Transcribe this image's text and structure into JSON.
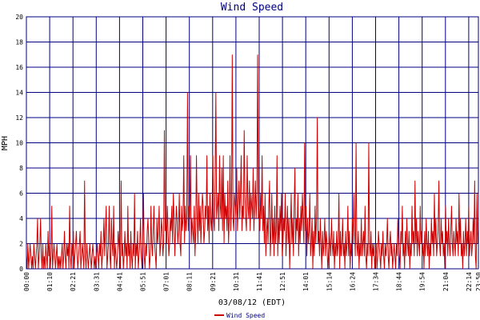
{
  "chart_data": {
    "type": "line",
    "title": "Wind Speed",
    "xlabel": "03/08/12 (EDT)",
    "ylabel": "MPH",
    "ylim": [
      0,
      20
    ],
    "yticks": [
      "0",
      "2",
      "4",
      "6",
      "8",
      "10",
      "12",
      "14",
      "16",
      "18",
      "20"
    ],
    "xticks": [
      "00:00",
      "01:10",
      "02:21",
      "03:31",
      "04:41",
      "05:51",
      "07:01",
      "08:11",
      "09:21",
      "10:31",
      "11:41",
      "12:51",
      "14:01",
      "15:14",
      "16:24",
      "17:34",
      "18:44",
      "19:54",
      "21:04",
      "22:14",
      "23:24",
      "23:50"
    ],
    "grid": true,
    "legend_position": "bottom-center",
    "colors": {
      "series": "#cc0000",
      "grid": "#000080",
      "frame": "#000080"
    },
    "series": [
      {
        "name": "Wind Speed",
        "values": [
          1,
          0,
          2,
          0,
          1,
          2,
          1,
          0,
          1,
          0,
          2,
          1,
          0,
          1,
          2,
          4,
          0,
          1,
          2,
          4,
          1,
          0,
          2,
          0,
          1,
          0,
          2,
          1,
          0,
          3,
          1,
          2,
          0,
          1,
          5,
          0,
          1,
          2,
          1,
          0,
          1,
          2,
          0,
          1,
          0,
          1,
          0,
          1,
          2,
          0,
          1,
          3,
          1,
          0,
          2,
          1,
          2,
          0,
          5,
          1,
          0,
          2,
          1,
          3,
          0,
          1,
          2,
          3,
          1,
          0,
          1,
          2,
          3,
          0,
          1,
          2,
          1,
          0,
          7,
          1,
          0,
          2,
          1,
          0,
          1,
          2,
          1,
          0,
          1,
          2,
          1,
          0,
          1,
          0,
          1,
          2,
          1,
          0,
          2,
          1,
          3,
          0,
          1,
          2,
          4,
          1,
          3,
          5,
          0,
          1,
          2,
          5,
          1,
          0,
          4,
          2,
          1,
          5,
          0,
          2,
          1,
          0,
          1,
          3,
          2,
          1,
          0,
          7,
          1,
          2,
          0,
          1,
          3,
          1,
          2,
          0,
          5,
          1,
          2,
          0,
          3,
          1,
          0,
          2,
          1,
          6,
          0,
          2,
          1,
          3,
          0,
          1,
          2,
          4,
          1,
          0,
          2,
          6,
          1,
          0,
          2,
          1,
          3,
          4,
          2,
          0,
          1,
          5,
          2,
          1,
          3,
          5,
          2,
          1,
          0,
          4,
          2,
          3,
          5,
          1,
          2,
          4,
          3,
          1,
          2,
          11,
          3,
          4,
          2,
          5,
          3,
          1,
          2,
          4,
          3,
          5,
          2,
          6,
          4,
          1,
          3,
          5,
          4,
          2,
          3,
          6,
          2,
          1,
          5,
          3,
          4,
          9,
          2,
          5,
          3,
          4,
          14,
          3,
          5,
          4,
          9,
          2,
          4,
          3,
          2,
          5,
          1,
          3,
          9,
          4,
          2,
          6,
          3,
          5,
          2,
          4,
          6,
          5,
          2,
          3,
          5,
          4,
          9,
          3,
          5,
          2,
          6,
          4,
          3,
          5,
          9,
          4,
          3,
          7,
          14,
          4,
          5,
          6,
          3,
          9,
          5,
          4,
          8,
          3,
          9,
          2,
          6,
          4,
          5,
          3,
          7,
          2,
          4,
          9,
          3,
          5,
          17,
          4,
          3,
          6,
          5,
          4,
          8,
          3,
          5,
          7,
          4,
          6,
          9,
          3,
          5,
          4,
          11,
          6,
          4,
          3,
          9,
          5,
          4,
          7,
          3,
          6,
          5,
          4,
          8,
          3,
          5,
          7,
          4,
          6,
          17,
          4,
          5,
          3,
          6,
          4,
          9,
          3,
          5,
          2,
          6,
          1,
          3,
          4,
          2,
          5,
          7,
          1,
          3,
          6,
          2,
          4,
          1,
          5,
          2,
          3,
          9,
          1,
          4,
          2,
          5,
          3,
          6,
          1,
          2,
          4,
          3,
          6,
          1,
          3,
          5,
          2,
          4,
          0,
          3,
          6,
          2,
          4,
          1,
          5,
          8,
          2,
          4,
          3,
          6,
          1,
          4,
          2,
          5,
          3,
          6,
          4,
          2,
          10,
          3,
          5,
          1,
          4,
          2,
          3,
          6,
          1,
          2,
          4,
          0,
          3,
          1,
          5,
          2,
          4,
          12,
          2,
          3,
          1,
          4,
          2,
          0,
          3,
          1,
          2,
          4,
          1,
          3,
          2,
          0,
          1,
          3,
          2,
          1,
          4,
          2,
          1,
          3,
          0,
          2,
          1,
          3,
          1,
          2,
          6,
          0,
          3,
          1,
          2,
          4,
          1,
          2,
          0,
          3,
          1,
          2,
          5,
          1,
          3,
          0,
          2,
          1,
          4,
          2,
          6,
          3,
          1,
          10,
          2,
          1,
          3,
          0,
          2,
          1,
          4,
          1,
          2,
          3,
          1,
          5,
          1,
          0,
          2,
          1,
          10,
          2,
          1,
          3,
          0,
          2,
          1,
          2,
          0,
          1,
          2,
          0,
          1,
          3,
          2,
          1,
          0,
          2,
          1,
          3,
          1,
          0,
          2,
          1,
          2,
          4,
          1,
          0,
          2,
          3,
          1,
          2,
          0,
          1,
          2,
          1,
          0,
          2,
          1,
          4,
          2,
          1,
          0,
          3,
          2,
          5,
          1,
          2,
          0,
          3,
          1,
          4,
          2,
          1,
          3,
          0,
          2,
          1,
          5,
          2,
          3,
          1,
          7,
          2,
          4,
          1,
          3,
          2,
          1,
          5,
          2,
          3,
          1,
          2,
          0,
          3,
          1,
          4,
          2,
          1,
          3,
          0,
          2,
          1,
          4,
          2,
          3,
          1,
          6,
          2,
          4,
          1,
          2,
          3,
          7,
          2,
          1,
          4,
          2,
          3,
          1,
          2,
          0,
          5,
          2,
          3,
          1,
          4,
          2,
          1,
          3,
          5,
          2,
          1,
          3,
          2,
          1,
          4,
          2,
          3,
          1,
          6,
          2,
          4,
          1,
          2,
          0,
          3,
          1,
          2,
          4,
          1,
          3,
          2,
          5,
          1,
          2,
          3,
          1,
          2,
          4,
          2,
          7,
          1,
          0,
          6,
          2,
          3
        ]
      }
    ]
  }
}
